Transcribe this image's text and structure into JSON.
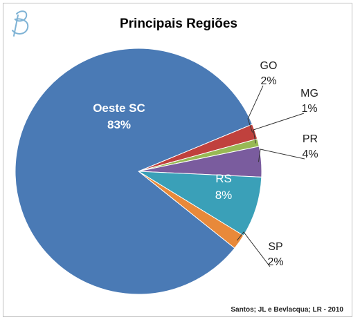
{
  "chart_data": {
    "type": "pie",
    "title": "Principais Regiões",
    "source": "Santos; JL e Bevlacqua; LR - 2010",
    "slices": [
      {
        "label": "Oeste SC",
        "value": 83,
        "display": "83%",
        "color": "#4a7ab5"
      },
      {
        "label": "GO",
        "value": 2,
        "display": "2%",
        "color": "#c0413d"
      },
      {
        "label": "MG",
        "value": 1,
        "display": "1%",
        "color": "#98b954"
      },
      {
        "label": "PR",
        "value": 4,
        "display": "4%",
        "color": "#7a5c9e"
      },
      {
        "label": "RS",
        "value": 8,
        "display": "8%",
        "color": "#3aa0b8"
      },
      {
        "label": "SP",
        "value": 2,
        "display": "2%",
        "color": "#e8893a"
      }
    ]
  },
  "logo": {
    "icon": "script-b-logo-icon"
  }
}
